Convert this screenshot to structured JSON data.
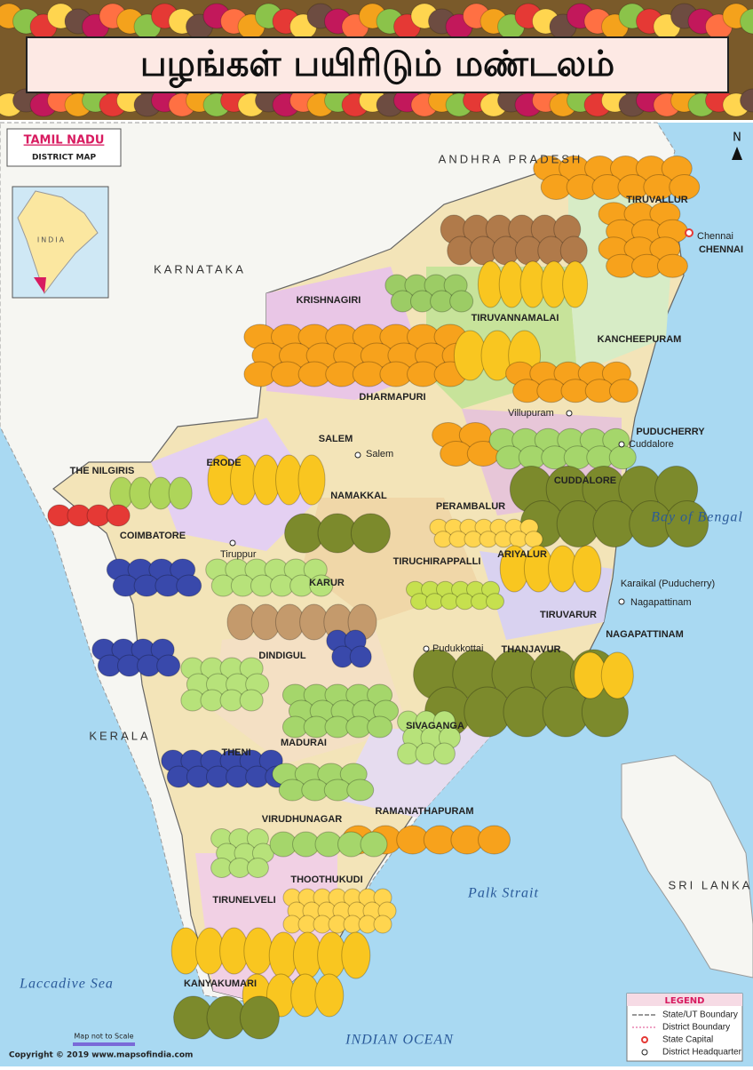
{
  "header": {
    "title": "பழங்கள் பயிரிடும் மண்டலம்"
  },
  "inset": {
    "title": "TAMIL NADU",
    "subtitle": "DISTRICT MAP",
    "country": "INDIA"
  },
  "compass": "N",
  "states": [
    "KARNATAKA",
    "ANDHRA PRADESH",
    "KERALA",
    "SRI LANKA",
    "PUDUCHERRY",
    "Karaikal (Puducherry)"
  ],
  "districts": [
    "TIRUVALLUR",
    "KRISHNAGIRI",
    "TIRUVANNAMALAI",
    "KANCHEEPURAM",
    "DHARMAPURI",
    "SALEM",
    "THE NILGIRIS",
    "ERODE",
    "NAMAKKAL",
    "PERAMBALUR",
    "CUDDALORE",
    "COIMBATORE",
    "TIRUCHIRAPPALLI",
    "ARIYALUR",
    "KARUR",
    "TIRUVARUR",
    "NAGAPATTINAM",
    "DINDIGUL",
    "THANJAVUR",
    "THENI",
    "MADURAI",
    "SIVAGANGA",
    "VIRUDHUNAGAR",
    "RAMANATHAPURAM",
    "THOOTHUKUDI",
    "TIRUNELVELI",
    "KANYAKUMARI",
    "CHENNAI"
  ],
  "cities": [
    "Chennai",
    "Salem",
    "Villupuram",
    "Tiruppur",
    "Nagapattinam",
    "Pudukkottai",
    "Cuddalore"
  ],
  "water": [
    "Bay of Bengal",
    "Laccadive Sea",
    "Palk Strait",
    "INDIAN OCEAN"
  ],
  "legend": {
    "title": "LEGEND",
    "items": [
      "State/UT Boundary",
      "District Boundary",
      "State Capital",
      "District Headquarter"
    ]
  },
  "footer": {
    "scale_note": "Map not to Scale",
    "copyright": "Copyright © 2019  www.mapsofindia.com"
  }
}
